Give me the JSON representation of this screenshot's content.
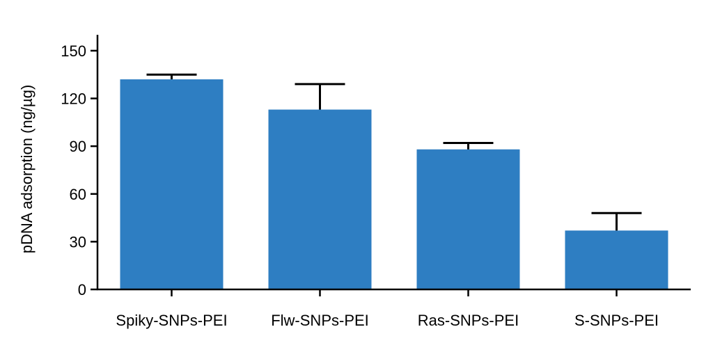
{
  "chart_data": {
    "type": "bar",
    "categories": [
      "Spiky-SNPs-PEI",
      "Flw-SNPs-PEI",
      "Ras-SNPs-PEI",
      "S-SNPs-PEI"
    ],
    "values": [
      132,
      113,
      88,
      37
    ],
    "error_upper": [
      135,
      129,
      92,
      48
    ],
    "ylabel": "pDNA adsorption (ng/µg)",
    "xlabel": "",
    "ylim": [
      0,
      160
    ],
    "yticks": [
      0,
      30,
      60,
      90,
      120,
      150
    ],
    "grid": false,
    "bar_color": "#2e7ec2",
    "error_color": "#000000"
  }
}
